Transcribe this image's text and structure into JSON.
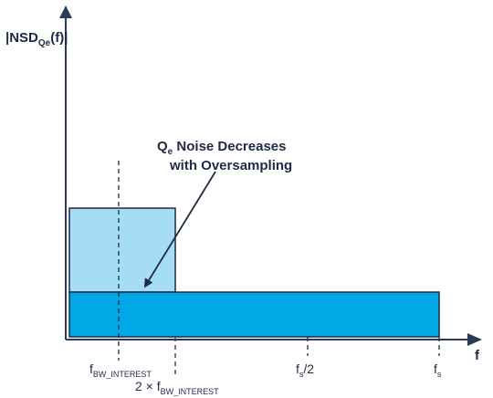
{
  "colors": {
    "axis": "#2b3a55",
    "dark_rect_fill": "#00a9e6",
    "light_rect_fill": "#a6ddf6",
    "rect_stroke": "#1f2a44",
    "text": "#1f2a44"
  },
  "axes": {
    "y_label": {
      "main": "|NSD",
      "sub": "Qe",
      "tail": "(f)|"
    },
    "x_label": "f"
  },
  "annotation": {
    "line1_main": "Q",
    "line1_sub": "e",
    "line1_tail": " Noise Decreases",
    "line2": "with Oversampling"
  },
  "ticks": {
    "bw": {
      "main": "f",
      "sub": "BW_INTEREST"
    },
    "two_bw": {
      "prefix": "2 × f",
      "sub": "BW_INTEREST"
    },
    "fs_half": {
      "main": "f",
      "sub": "s",
      "tail": "/2"
    },
    "fs": {
      "main": "f",
      "sub": "s"
    }
  }
}
